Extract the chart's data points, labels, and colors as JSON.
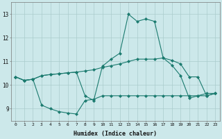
{
  "xlabel": "Humidex (Indice chaleur)",
  "bg_color": "#cce8ea",
  "grid_color": "#aacccc",
  "line_color": "#1a7a6e",
  "xlim": [
    -0.5,
    23.5
  ],
  "ylim": [
    8.5,
    13.5
  ],
  "xticks": [
    0,
    1,
    2,
    3,
    4,
    5,
    6,
    7,
    8,
    9,
    10,
    11,
    12,
    13,
    14,
    15,
    16,
    17,
    18,
    19,
    20,
    21,
    22,
    23
  ],
  "yticks": [
    9,
    10,
    11,
    12,
    13
  ],
  "s1_y": [
    10.35,
    10.2,
    10.25,
    10.4,
    10.45,
    10.48,
    10.52,
    10.55,
    9.55,
    9.35,
    10.8,
    11.1,
    11.35,
    13.0,
    12.7,
    12.8,
    12.7,
    11.15,
    10.85,
    10.4,
    9.45,
    9.55,
    9.65,
    9.65
  ],
  "s2_y": [
    10.35,
    10.2,
    10.25,
    9.15,
    9.0,
    8.88,
    8.82,
    8.78,
    9.35,
    9.4,
    9.55,
    9.55,
    9.55,
    9.55,
    9.55,
    9.55,
    9.55,
    9.55,
    9.55,
    9.55,
    9.55,
    9.55,
    9.55,
    9.65
  ],
  "s3_y": [
    10.35,
    10.2,
    10.25,
    10.4,
    10.45,
    10.48,
    10.52,
    10.55,
    10.6,
    10.65,
    10.75,
    10.82,
    10.9,
    11.0,
    11.1,
    11.1,
    11.1,
    11.15,
    11.05,
    10.9,
    10.35,
    10.35,
    9.55,
    9.65
  ]
}
